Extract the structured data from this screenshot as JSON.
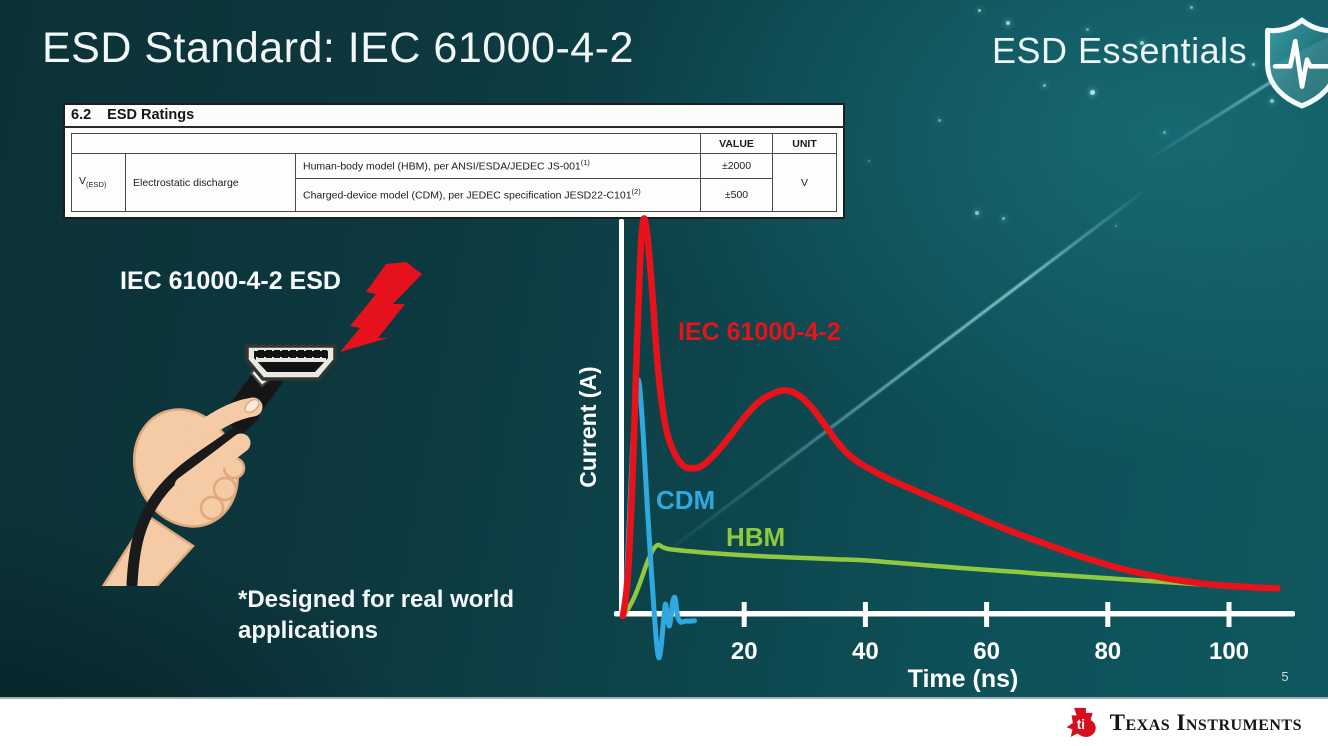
{
  "slide": {
    "title": "ESD Standard: IEC 61000-4-2",
    "series_brand": "ESD Essentials",
    "page_number": "5"
  },
  "ratings_table": {
    "section_number": "6.2",
    "section_title": "ESD Ratings",
    "columns": {
      "value": "VALUE",
      "unit": "UNIT"
    },
    "parameter": {
      "symbol": "V",
      "subscript": "(ESD)",
      "name": "Electrostatic discharge"
    },
    "rows": [
      {
        "description": "Human-body model (HBM), per ANSI/ESDA/JEDEC JS-001",
        "description_sup": "(1)",
        "value": "±2000"
      },
      {
        "description": "Charged-device model (CDM), per JEDEC specification JESD22-C101",
        "description_sup": "(2)",
        "value": "±500"
      }
    ],
    "unit": "V"
  },
  "illustration": {
    "label": "IEC 61000-4-2 ESD",
    "note": "*Designed for real world applications"
  },
  "chart_data": {
    "type": "line",
    "title": "",
    "xlabel": "Time (ns)",
    "ylabel": "Current (A)",
    "xlim": [
      0,
      112
    ],
    "ylim": [
      -0.12,
      1.05
    ],
    "xticks": [
      20,
      40,
      60,
      80,
      100
    ],
    "grid": false,
    "note": "y-axis unlabeled; values are relative amplitude (red IEC peak = 1.0)",
    "legend_position": "inline-labels",
    "series": [
      {
        "name": "IEC 61000-4-2",
        "color": "#e8121b",
        "points": [
          [
            0,
            0
          ],
          [
            0.8,
            0.1
          ],
          [
            1.6,
            0.36
          ],
          [
            2.3,
            0.68
          ],
          [
            2.9,
            0.92
          ],
          [
            3.4,
            1.0
          ],
          [
            4.0,
            0.96
          ],
          [
            4.8,
            0.82
          ],
          [
            5.8,
            0.62
          ],
          [
            7,
            0.48
          ],
          [
            8.5,
            0.41
          ],
          [
            10,
            0.378
          ],
          [
            11.5,
            0.372
          ],
          [
            13,
            0.378
          ],
          [
            15,
            0.405
          ],
          [
            17.5,
            0.45
          ],
          [
            20,
            0.5
          ],
          [
            22.5,
            0.54
          ],
          [
            25,
            0.562
          ],
          [
            27,
            0.568
          ],
          [
            29,
            0.556
          ],
          [
            31,
            0.528
          ],
          [
            33,
            0.488
          ],
          [
            35,
            0.445
          ],
          [
            37,
            0.41
          ],
          [
            39,
            0.386
          ],
          [
            41,
            0.368
          ],
          [
            44,
            0.344
          ],
          [
            47,
            0.324
          ],
          [
            50,
            0.304
          ],
          [
            54,
            0.278
          ],
          [
            58,
            0.252
          ],
          [
            62,
            0.226
          ],
          [
            66,
            0.202
          ],
          [
            70,
            0.18
          ],
          [
            74,
            0.158
          ],
          [
            78,
            0.138
          ],
          [
            82,
            0.12
          ],
          [
            86,
            0.106
          ],
          [
            90,
            0.094
          ],
          [
            94,
            0.085
          ],
          [
            98,
            0.078
          ],
          [
            102,
            0.074
          ],
          [
            105,
            0.071
          ],
          [
            108,
            0.07
          ]
        ]
      },
      {
        "name": "CDM",
        "color": "#2fa9e0",
        "points": [
          [
            0,
            0
          ],
          [
            0.5,
            0.07
          ],
          [
            1.0,
            0.23
          ],
          [
            1.6,
            0.43
          ],
          [
            2.1,
            0.55
          ],
          [
            2.5,
            0.595
          ],
          [
            2.9,
            0.55
          ],
          [
            3.4,
            0.44
          ],
          [
            4.0,
            0.28
          ],
          [
            4.6,
            0.13
          ],
          [
            5.1,
            0.02
          ],
          [
            5.5,
            -0.06
          ],
          [
            5.9,
            -0.105
          ],
          [
            6.3,
            -0.075
          ],
          [
            6.7,
            -0.01
          ],
          [
            7.0,
            0.03
          ],
          [
            7.3,
            0.005
          ],
          [
            7.6,
            -0.025
          ],
          [
            7.9,
            -0.005
          ],
          [
            8.2,
            0.035
          ],
          [
            8.6,
            0.045
          ],
          [
            9.0,
            0
          ],
          [
            9.5,
            -0.015
          ],
          [
            10.2,
            -0.013
          ],
          [
            11.0,
            -0.013
          ],
          [
            11.8,
            -0.012
          ]
        ]
      },
      {
        "name": "HBM",
        "color": "#8fc93f",
        "points": [
          [
            0,
            0
          ],
          [
            1,
            0.022
          ],
          [
            2,
            0.052
          ],
          [
            3,
            0.092
          ],
          [
            4,
            0.135
          ],
          [
            5,
            0.168
          ],
          [
            5.8,
            0.179
          ],
          [
            6.6,
            0.173
          ],
          [
            7.5,
            0.169
          ],
          [
            9,
            0.166
          ],
          [
            11,
            0.163
          ],
          [
            14,
            0.159
          ],
          [
            17,
            0.156
          ],
          [
            20,
            0.153
          ],
          [
            25,
            0.149
          ],
          [
            30,
            0.146
          ],
          [
            35,
            0.143
          ],
          [
            40,
            0.14
          ],
          [
            45,
            0.134
          ],
          [
            50,
            0.128
          ],
          [
            55,
            0.122
          ],
          [
            60,
            0.116
          ],
          [
            65,
            0.111
          ],
          [
            70,
            0.105
          ],
          [
            75,
            0.1
          ],
          [
            80,
            0.095
          ],
          [
            85,
            0.09
          ],
          [
            90,
            0.085
          ],
          [
            95,
            0.08
          ],
          [
            100,
            0.076
          ],
          [
            104,
            0.073
          ],
          [
            108,
            0.071
          ]
        ]
      }
    ]
  },
  "footer": {
    "brand": "Texas Instruments",
    "logo_monogram": "ti"
  },
  "colors": {
    "background_dark": "#0c3237",
    "background_light": "#0f575e",
    "bolt_red": "#e5121d",
    "axis_white": "#ffffff"
  }
}
